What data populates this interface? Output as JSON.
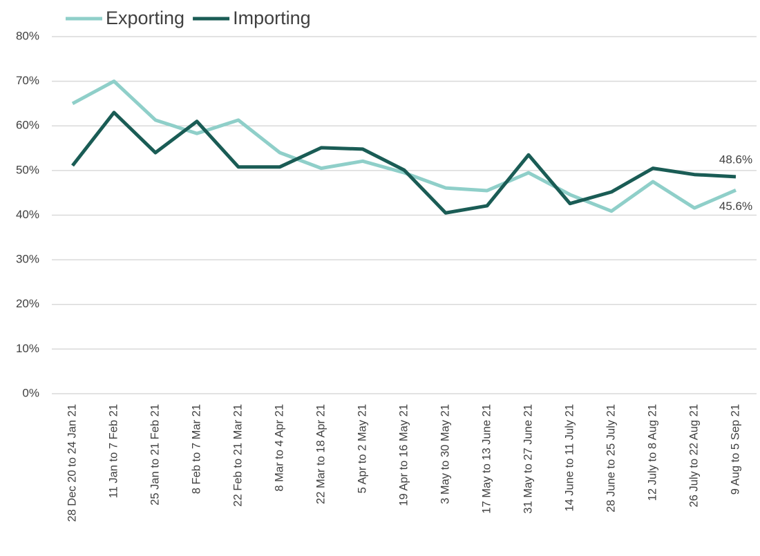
{
  "chart_data": {
    "type": "line",
    "categories": [
      "28 Dec 20 to 24 Jan 21",
      "11 Jan to 7 Feb 21",
      "25 Jan to 21 Feb 21",
      "8 Feb to 7 Mar 21",
      "22 Feb to 21 Mar 21",
      "8 Mar to 4 Apr 21",
      "22 Mar to 18 Apr 21",
      "5 Apr to 2 May 21",
      "19 Apr to 16 May 21",
      "3 May to 30 May 21",
      "17 May to 13 June 21",
      "31 May to 27 June 21",
      "14 June to 11 July 21",
      "28 June to 25 July 21",
      "12 July to 8 Aug 21",
      "26 July to 22 Aug 21",
      "9 Aug to 5 Sep 21"
    ],
    "series": [
      {
        "name": "Exporting",
        "color": "#8fcfc9",
        "values": [
          65.0,
          70.0,
          61.3,
          58.3,
          61.3,
          54.0,
          50.5,
          52.1,
          49.5,
          46.1,
          45.5,
          49.5,
          44.6,
          40.9,
          47.5,
          41.6,
          45.6
        ],
        "value_labels": [
          null,
          null,
          null,
          null,
          null,
          null,
          null,
          null,
          null,
          null,
          null,
          null,
          null,
          null,
          null,
          null,
          "45.6%"
        ]
      },
      {
        "name": "Importing",
        "color": "#1a5c55",
        "values": [
          51.1,
          63.0,
          54.0,
          61.0,
          50.8,
          50.8,
          55.1,
          54.8,
          50.1,
          40.5,
          42.1,
          53.5,
          42.6,
          45.2,
          50.5,
          49.1,
          48.6
        ],
        "value_labels": [
          null,
          null,
          null,
          null,
          null,
          null,
          null,
          null,
          null,
          null,
          null,
          null,
          null,
          null,
          null,
          null,
          "48.6%"
        ]
      }
    ],
    "ylim": [
      0,
      80
    ],
    "yticks": [
      {
        "value": 0,
        "label": "0%"
      },
      {
        "value": 10,
        "label": "10%"
      },
      {
        "value": 20,
        "label": "20%"
      },
      {
        "value": 30,
        "label": "30%"
      },
      {
        "value": 40,
        "label": "40%"
      },
      {
        "value": 50,
        "label": "50%"
      },
      {
        "value": 60,
        "label": "60%"
      },
      {
        "value": 70,
        "label": "70%"
      },
      {
        "value": 80,
        "label": "80%"
      }
    ],
    "grid": true,
    "legend": "top-left"
  }
}
